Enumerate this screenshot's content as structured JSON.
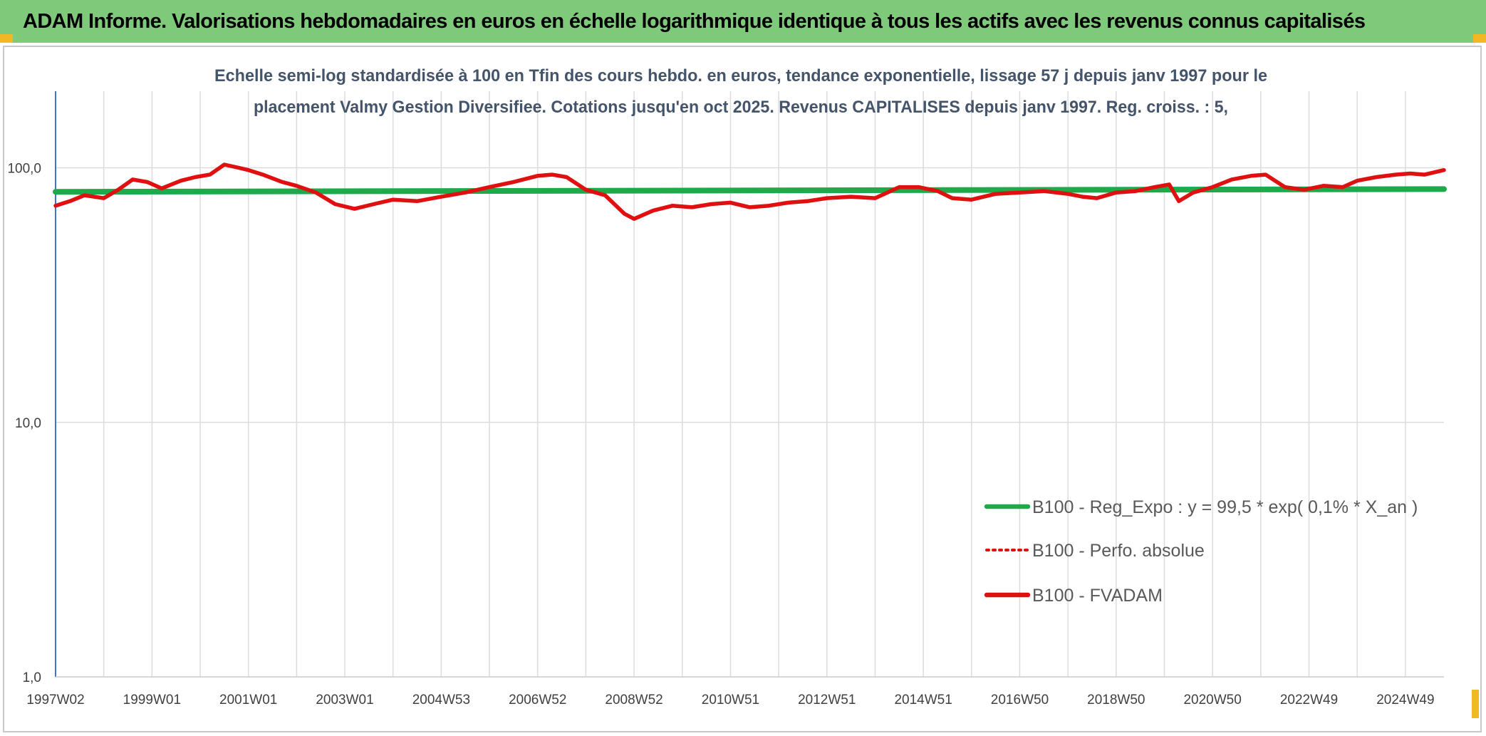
{
  "banner": {
    "title": "ADAM Informe. Valorisations hebdomadaires en euros en échelle logarithmique identique à tous les actifs avec les revenus connus capitalisés",
    "color": "#7fc97a"
  },
  "chart_data": {
    "type": "line",
    "title_lines": [
      "Echelle semi-log standardisée à 100 en Tfin des cours hebdo. en euros, tendance exponentielle, lissage 57 j depuis janv 1997 pour le",
      "placement Valmy Gestion Diversifiee. Cotations jusqu'en oct 2025. Revenus CAPITALISES depuis janv 1997. Reg. croiss. : 5,"
    ],
    "xlabel": "",
    "ylabel": "",
    "y_scale": "log",
    "ylim": [
      1,
      200
    ],
    "xlim": [
      1997.0,
      2025.8
    ],
    "grid": true,
    "legend_position": "bottom-right",
    "y_ticks": [
      {
        "value": 1,
        "label": "1,0"
      },
      {
        "value": 10,
        "label": "10,0"
      },
      {
        "value": 100,
        "label": "100,0"
      }
    ],
    "x_ticks": [
      {
        "x": 1997.0,
        "label": "1997W02"
      },
      {
        "x": 1999.0,
        "label": "1999W01"
      },
      {
        "x": 2001.0,
        "label": "2001W01"
      },
      {
        "x": 2003.0,
        "label": "2003W01"
      },
      {
        "x": 2005.0,
        "label": "2004W53"
      },
      {
        "x": 2007.0,
        "label": "2006W52"
      },
      {
        "x": 2009.0,
        "label": "2008W52"
      },
      {
        "x": 2011.0,
        "label": "2010W51"
      },
      {
        "x": 2013.0,
        "label": "2012W51"
      },
      {
        "x": 2015.0,
        "label": "2014W51"
      },
      {
        "x": 2017.0,
        "label": "2016W50"
      },
      {
        "x": 2019.0,
        "label": "2018W50"
      },
      {
        "x": 2021.0,
        "label": "2020W50"
      },
      {
        "x": 2023.0,
        "label": "2022W49"
      },
      {
        "x": 2025.0,
        "label": "2024W49"
      }
    ],
    "x_gridlines": [
      1997.0,
      1998.0,
      1999.0,
      2000.0,
      2001.0,
      2002.0,
      2003.0,
      2004.0,
      2005.0,
      2006.0,
      2007.0,
      2008.0,
      2009.0,
      2010.0,
      2011.0,
      2012.0,
      2013.0,
      2014.0,
      2015.0,
      2016.0,
      2017.0,
      2018.0,
      2019.0,
      2020.0,
      2021.0,
      2022.0,
      2023.0,
      2024.0,
      2025.0
    ],
    "series": [
      {
        "name": "B100 - Reg_Expo : y = 99,5 * exp( 0,1% * X_an )",
        "color": "#1eaa4b",
        "style": "solid",
        "x": [
          1997.0,
          2025.8
        ],
        "values": [
          80.5,
          82.5
        ]
      },
      {
        "name": "B100 - Perfo. absolue",
        "color": "#e01010",
        "style": "dotted",
        "x": [],
        "values": []
      },
      {
        "name": "B100 - FVADAM",
        "color": "#e01010",
        "style": "solid",
        "x": [
          1997.0,
          1997.3,
          1997.6,
          1998.0,
          1998.3,
          1998.6,
          1998.9,
          1999.2,
          1999.6,
          1999.9,
          2000.2,
          2000.5,
          2000.8,
          2001.0,
          2001.3,
          2001.7,
          2002.0,
          2002.4,
          2002.8,
          2003.2,
          2003.6,
          2004.0,
          2004.5,
          2005.0,
          2005.5,
          2006.0,
          2006.5,
          2007.0,
          2007.3,
          2007.6,
          2008.0,
          2008.4,
          2008.8,
          2009.0,
          2009.4,
          2009.8,
          2010.2,
          2010.6,
          2011.0,
          2011.4,
          2011.8,
          2012.2,
          2012.6,
          2013.0,
          2013.5,
          2014.0,
          2014.5,
          2014.9,
          2015.3,
          2015.6,
          2016.0,
          2016.5,
          2017.0,
          2017.5,
          2018.0,
          2018.3,
          2018.6,
          2019.0,
          2019.4,
          2019.8,
          2020.1,
          2020.3,
          2020.6,
          2021.0,
          2021.4,
          2021.8,
          2022.1,
          2022.5,
          2022.9,
          2023.3,
          2023.7,
          2024.0,
          2024.4,
          2024.8,
          2025.1,
          2025.4,
          2025.8
        ],
        "values": [
          71,
          74,
          78,
          76,
          82,
          90,
          88,
          83,
          89,
          92,
          94,
          103,
          100,
          98,
          94,
          88,
          85,
          80,
          72,
          69,
          72,
          75,
          74,
          77,
          80,
          84,
          88,
          93,
          94,
          92,
          82,
          78,
          66,
          63,
          68,
          71,
          70,
          72,
          73,
          70,
          71,
          73,
          74,
          76,
          77,
          76,
          84,
          84,
          81,
          76,
          75,
          79,
          80,
          81,
          79,
          77,
          76,
          80,
          81,
          84,
          86,
          74,
          80,
          84,
          90,
          93,
          94,
          84,
          82,
          85,
          84,
          89,
          92,
          94,
          95,
          94,
          98
        ]
      }
    ]
  }
}
